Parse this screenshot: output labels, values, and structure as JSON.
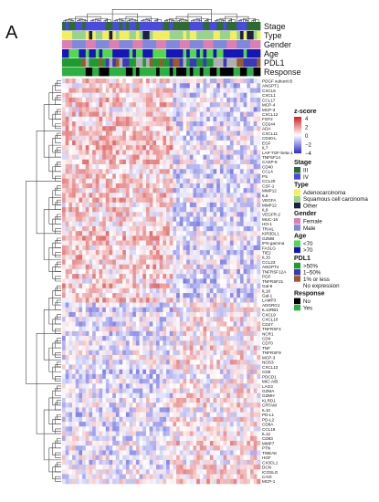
{
  "panel_label": "A",
  "chart_data": {
    "type": "heatmap",
    "annotation_tracks": [
      "Stage",
      "Type",
      "Gender",
      "Age",
      "PDL1",
      "Response"
    ],
    "rows": [
      "PDGF subunit B",
      "ANGPT1",
      "CXCL5",
      "CXCL1",
      "CCL17",
      "MCP-4",
      "MCP-3",
      "CXCL12",
      "FGF2",
      "CD244",
      "ADA",
      "CXCL11",
      "CD40-L",
      "EGF",
      "IL7",
      "LAP TGF-beta-1",
      "TNFSF14",
      "CASP-8",
      "CD40",
      "CCL4",
      "PS",
      "CCL20",
      "CSF-1",
      "MMP12",
      "IL6",
      "VEGFA",
      "MMP12",
      "IL8",
      "VEGFR-2",
      "MUC-16",
      "HO-1",
      "TRAIL",
      "KIR3DL1",
      "GZMB",
      "IFN-gamma",
      "FASLG",
      "TIE2",
      "IL15",
      "CCL23",
      "ANGPT2",
      "TNFRSF12A",
      "PGF",
      "TNFRSF21",
      "Gal-9",
      "IL18",
      "Gal-1",
      "LAMP3",
      "ADGRG1",
      "IL12RB1",
      "CXCL9",
      "CXCL10",
      "CD27",
      "TNFRSF4",
      "NCR1",
      "CD4",
      "CD70",
      "TNF",
      "TNFRSF9",
      "MCP-3",
      "NOS3",
      "CXCL13",
      "CD5",
      "PDCD1",
      "MIC-A/B",
      "LAG3",
      "GZMA",
      "GZMH",
      "KLRD1",
      "CRTAM",
      "IL10",
      "PD-L1",
      "PD-L2",
      "CD8A",
      "CCL19",
      "IL12",
      "CD83",
      "MMP7",
      "PTN",
      "TWEAK",
      "HGF",
      "CX3CL1",
      "DCN",
      "ICOSLG",
      "CAIX",
      "MCP-1"
    ],
    "n_samples": 59,
    "legend": {
      "zscore": {
        "title": "z-score",
        "ticks": [
          "4",
          "2",
          "0",
          "−2",
          "−4"
        ]
      },
      "groups": [
        {
          "title": "Stage",
          "items": [
            {
              "label": "III",
              "color": "#2e6b33"
            },
            {
              "label": "IV",
              "color": "#4a4adf"
            }
          ]
        },
        {
          "title": "Type",
          "items": [
            {
              "label": "Adenocarcinoma",
              "color": "#f2ef5a"
            },
            {
              "label": "Squamous cell carcinoma",
              "color": "#9ad38a"
            },
            {
              "label": "Other",
              "color": "#1f1e46"
            }
          ]
        },
        {
          "title": "Gender",
          "items": [
            {
              "label": "Female",
              "color": "#dd7fb5"
            },
            {
              "label": "Male",
              "color": "#7f88dc"
            }
          ]
        },
        {
          "title": "Age",
          "items": [
            {
              "label": "<70",
              "color": "#53d84e"
            },
            {
              "label": ">70",
              "color": "#1616b8"
            }
          ]
        },
        {
          "title": "PDL1",
          "items": [
            {
              "label": ">50%",
              "color": "#1e9a2f"
            },
            {
              "label": "1–50%",
              "color": "#3a3ab8"
            },
            {
              "label": "1% or less",
              "color": "#9b5a2a"
            },
            {
              "label": "No expression",
              "color": ""
            }
          ]
        },
        {
          "title": "Response",
          "items": [
            {
              "label": "No",
              "color": "#000000"
            },
            {
              "label": "Yes",
              "color": "#2cb043"
            }
          ]
        }
      ]
    }
  },
  "colors": {
    "high": "#d22020",
    "mid": "#ffffff",
    "low": "#2a2ad6",
    "stage_III": "#2e6b33",
    "stage_IV": "#4a4adf"
  }
}
